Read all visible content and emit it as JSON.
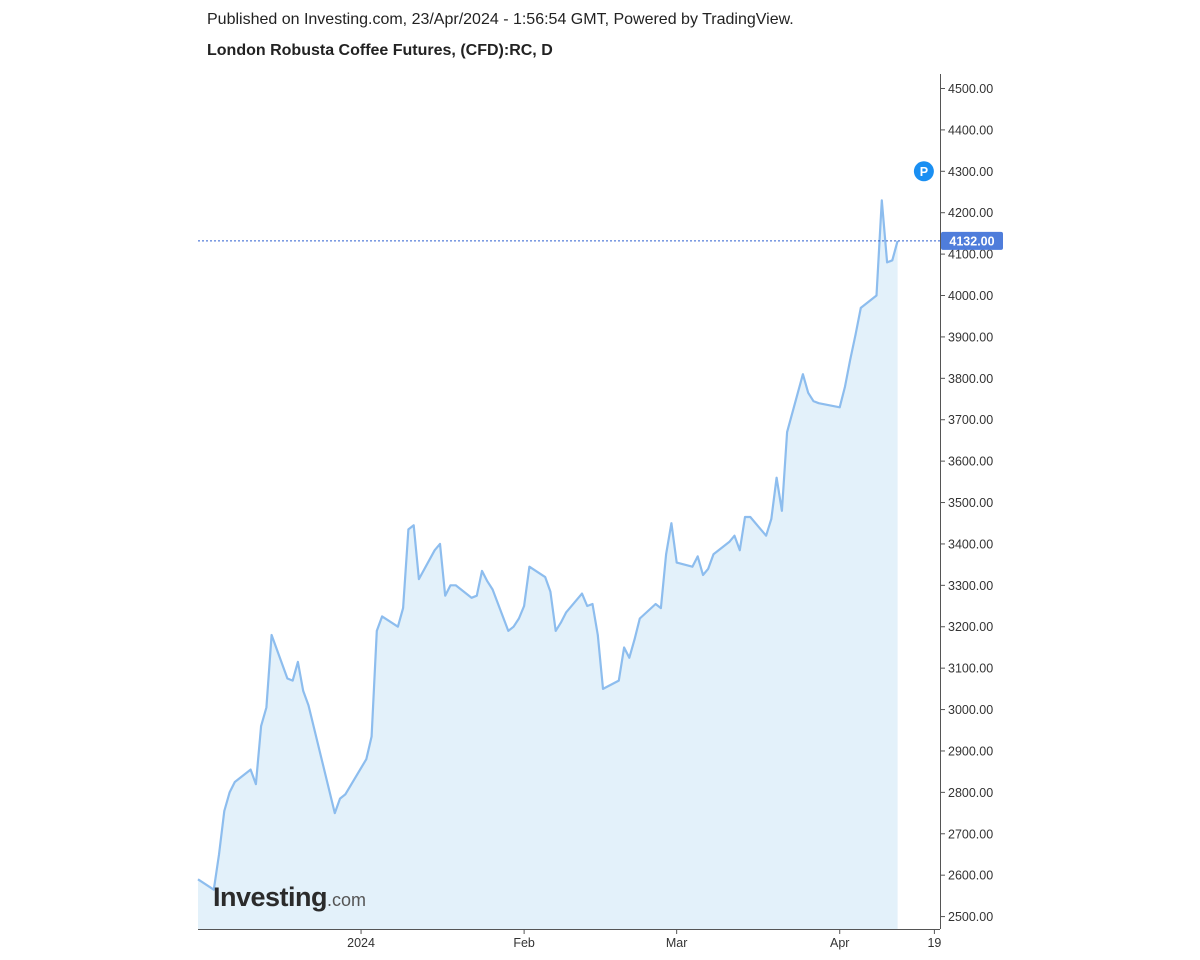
{
  "header": {
    "published_text": "Published on Investing.com, 23/Apr/2024 - 1:56:54 GMT, Powered by TradingView.",
    "title": "London Robusta Coffee Futures, (CFD):RC, D"
  },
  "watermark": {
    "brand": "Investing",
    "suffix": ".com"
  },
  "colors": {
    "line": "#8dbdee",
    "area": "#e3f1fa",
    "price_line": "#2f5fd0",
    "price_badge": "#4f7ddb",
    "marker": "#1a8ff2",
    "axis": "#555555"
  },
  "chart_data": {
    "type": "area",
    "x_start": "2023-12-01",
    "y_ticks": [
      "4500.00",
      "4400.00",
      "4300.00",
      "4200.00",
      "4100.00",
      "4000.00",
      "3900.00",
      "3800.00",
      "3700.00",
      "3600.00",
      "3500.00",
      "3400.00",
      "3300.00",
      "3200.00",
      "3100.00",
      "3000.00",
      "2900.00",
      "2800.00",
      "2700.00",
      "2600.00",
      "2500.00"
    ],
    "ylim": [
      2470,
      4535
    ],
    "x_tick_labels": [
      {
        "label": "2024",
        "date": "2024-01-01"
      },
      {
        "label": "Feb",
        "date": "2024-02-01"
      },
      {
        "label": "Mar",
        "date": "2024-03-01"
      },
      {
        "label": "Apr",
        "date": "2024-04-01"
      },
      {
        "label": "19",
        "date": "2024-04-19"
      }
    ],
    "last_price": 4132.0,
    "last_price_label": "4132.00",
    "marker": {
      "label": "P",
      "date": "2024-04-17",
      "value": 4300
    },
    "series": [
      {
        "values": [
          {
            "x": "2023-12-01",
            "y": 2590
          },
          {
            "x": "2023-12-04",
            "y": 2565
          },
          {
            "x": "2023-12-05",
            "y": 2650
          },
          {
            "x": "2023-12-06",
            "y": 2755
          },
          {
            "x": "2023-12-07",
            "y": 2800
          },
          {
            "x": "2023-12-08",
            "y": 2825
          },
          {
            "x": "2023-12-11",
            "y": 2855
          },
          {
            "x": "2023-12-12",
            "y": 2820
          },
          {
            "x": "2023-12-13",
            "y": 2960
          },
          {
            "x": "2023-12-14",
            "y": 3005
          },
          {
            "x": "2023-12-15",
            "y": 3180
          },
          {
            "x": "2023-12-18",
            "y": 3075
          },
          {
            "x": "2023-12-19",
            "y": 3070
          },
          {
            "x": "2023-12-20",
            "y": 3115
          },
          {
            "x": "2023-12-21",
            "y": 3045
          },
          {
            "x": "2023-12-22",
            "y": 3010
          },
          {
            "x": "2023-12-27",
            "y": 2750
          },
          {
            "x": "2023-12-28",
            "y": 2785
          },
          {
            "x": "2023-12-29",
            "y": 2795
          },
          {
            "x": "2024-01-02",
            "y": 2880
          },
          {
            "x": "2024-01-03",
            "y": 2935
          },
          {
            "x": "2024-01-04",
            "y": 3190
          },
          {
            "x": "2024-01-05",
            "y": 3225
          },
          {
            "x": "2024-01-08",
            "y": 3200
          },
          {
            "x": "2024-01-09",
            "y": 3245
          },
          {
            "x": "2024-01-10",
            "y": 3435
          },
          {
            "x": "2024-01-11",
            "y": 3445
          },
          {
            "x": "2024-01-12",
            "y": 3315
          },
          {
            "x": "2024-01-15",
            "y": 3385
          },
          {
            "x": "2024-01-16",
            "y": 3400
          },
          {
            "x": "2024-01-17",
            "y": 3275
          },
          {
            "x": "2024-01-18",
            "y": 3300
          },
          {
            "x": "2024-01-19",
            "y": 3300
          },
          {
            "x": "2024-01-22",
            "y": 3270
          },
          {
            "x": "2024-01-23",
            "y": 3275
          },
          {
            "x": "2024-01-24",
            "y": 3335
          },
          {
            "x": "2024-01-25",
            "y": 3310
          },
          {
            "x": "2024-01-26",
            "y": 3290
          },
          {
            "x": "2024-01-29",
            "y": 3190
          },
          {
            "x": "2024-01-30",
            "y": 3200
          },
          {
            "x": "2024-01-31",
            "y": 3220
          },
          {
            "x": "2024-02-01",
            "y": 3250
          },
          {
            "x": "2024-02-02",
            "y": 3345
          },
          {
            "x": "2024-02-05",
            "y": 3320
          },
          {
            "x": "2024-02-06",
            "y": 3285
          },
          {
            "x": "2024-02-07",
            "y": 3190
          },
          {
            "x": "2024-02-08",
            "y": 3210
          },
          {
            "x": "2024-02-09",
            "y": 3235
          },
          {
            "x": "2024-02-12",
            "y": 3280
          },
          {
            "x": "2024-02-13",
            "y": 3250
          },
          {
            "x": "2024-02-14",
            "y": 3255
          },
          {
            "x": "2024-02-15",
            "y": 3180
          },
          {
            "x": "2024-02-16",
            "y": 3050
          },
          {
            "x": "2024-02-19",
            "y": 3070
          },
          {
            "x": "2024-02-20",
            "y": 3150
          },
          {
            "x": "2024-02-21",
            "y": 3125
          },
          {
            "x": "2024-02-22",
            "y": 3170
          },
          {
            "x": "2024-02-23",
            "y": 3220
          },
          {
            "x": "2024-02-26",
            "y": 3255
          },
          {
            "x": "2024-02-27",
            "y": 3245
          },
          {
            "x": "2024-02-28",
            "y": 3375
          },
          {
            "x": "2024-02-29",
            "y": 3450
          },
          {
            "x": "2024-03-01",
            "y": 3355
          },
          {
            "x": "2024-03-04",
            "y": 3345
          },
          {
            "x": "2024-03-05",
            "y": 3370
          },
          {
            "x": "2024-03-06",
            "y": 3325
          },
          {
            "x": "2024-03-07",
            "y": 3340
          },
          {
            "x": "2024-03-08",
            "y": 3375
          },
          {
            "x": "2024-03-11",
            "y": 3405
          },
          {
            "x": "2024-03-12",
            "y": 3420
          },
          {
            "x": "2024-03-13",
            "y": 3385
          },
          {
            "x": "2024-03-14",
            "y": 3465
          },
          {
            "x": "2024-03-15",
            "y": 3465
          },
          {
            "x": "2024-03-18",
            "y": 3420
          },
          {
            "x": "2024-03-19",
            "y": 3460
          },
          {
            "x": "2024-03-20",
            "y": 3560
          },
          {
            "x": "2024-03-21",
            "y": 3480
          },
          {
            "x": "2024-03-22",
            "y": 3670
          },
          {
            "x": "2024-03-25",
            "y": 3810
          },
          {
            "x": "2024-03-26",
            "y": 3765
          },
          {
            "x": "2024-03-27",
            "y": 3745
          },
          {
            "x": "2024-03-28",
            "y": 3740
          },
          {
            "x": "2024-04-01",
            "y": 3730
          },
          {
            "x": "2024-04-02",
            "y": 3780
          },
          {
            "x": "2024-04-03",
            "y": 3845
          },
          {
            "x": "2024-04-04",
            "y": 3905
          },
          {
            "x": "2024-04-05",
            "y": 3970
          },
          {
            "x": "2024-04-08",
            "y": 4000
          },
          {
            "x": "2024-04-09",
            "y": 4230
          },
          {
            "x": "2024-04-10",
            "y": 4080
          },
          {
            "x": "2024-04-11",
            "y": 4085
          },
          {
            "x": "2024-04-12",
            "y": 4132
          }
        ]
      }
    ]
  }
}
